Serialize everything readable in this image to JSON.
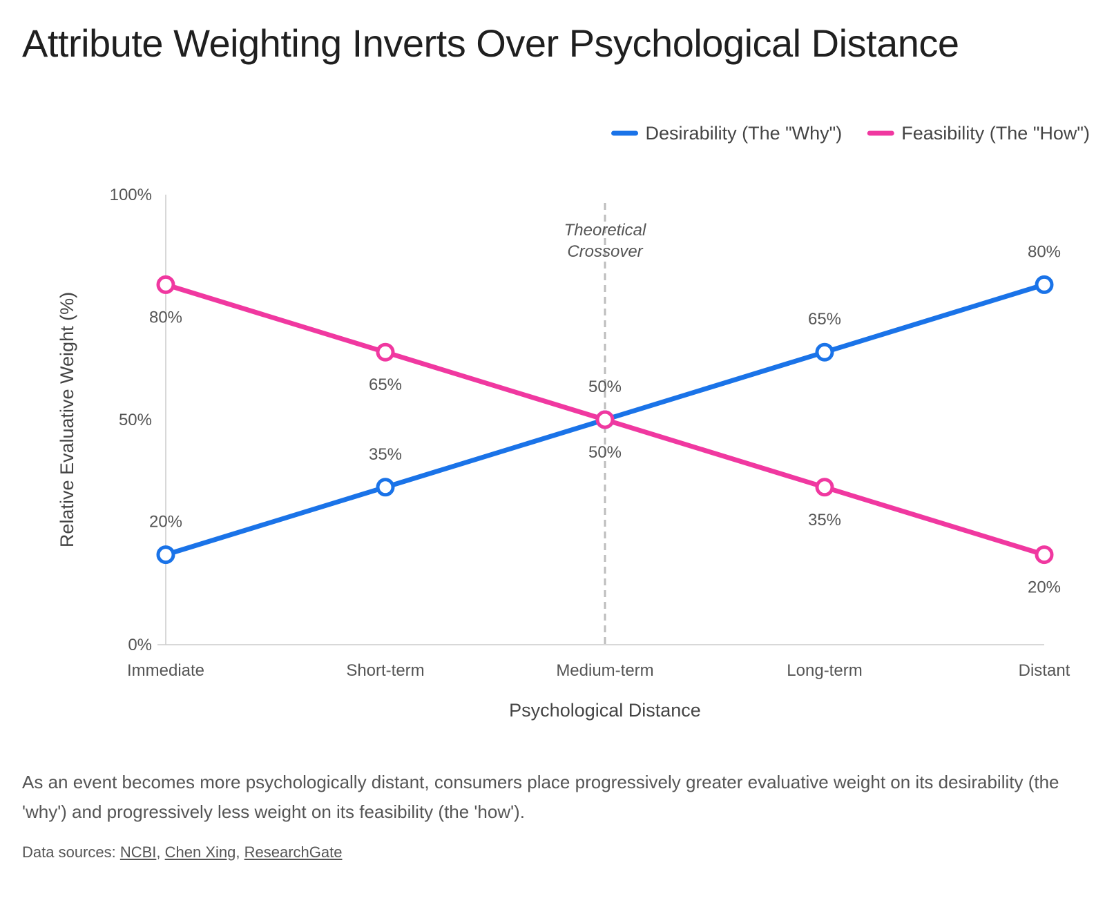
{
  "title": "Attribute Weighting Inverts Over Psychological Distance",
  "caption": "As an event becomes more psychologically distant, consumers place progressively greater evaluative weight on its desirability (the 'why') and progressively less weight on its feasibility (the 'how').",
  "sources": {
    "prefix": "Data sources: ",
    "links": [
      "NCBI",
      "Chen Xing",
      "ResearchGate"
    ],
    "separator": ", "
  },
  "chart_data": {
    "type": "line",
    "title": "Attribute Weighting Inverts Over Psychological Distance",
    "xlabel": "Psychological Distance",
    "ylabel": "Relative Evaluative Weight (%)",
    "categories": [
      "Immediate",
      "Short-term",
      "Medium-term",
      "Long-term",
      "Distant"
    ],
    "ylim": [
      0,
      100
    ],
    "yticks": [
      "0%",
      "50%",
      "100%"
    ],
    "grid": false,
    "legend_position": "top-right",
    "series": [
      {
        "name": "Desirability (The \"Why\")",
        "color": "#1a73e8",
        "values": [
          20,
          35,
          50,
          65,
          80
        ],
        "labels": [
          "20%",
          "35%",
          "50%",
          "65%",
          "80%"
        ],
        "label_position": "above"
      },
      {
        "name": "Feasibility (The \"How\")",
        "color": "#f038a0",
        "values": [
          80,
          65,
          50,
          35,
          20
        ],
        "labels": [
          "80%",
          "65%",
          "50%",
          "35%",
          "20%"
        ],
        "label_position": "below"
      }
    ],
    "annotation": {
      "text_lines": [
        "Theoretical",
        "Crossover"
      ],
      "category": "Medium-term",
      "line_style": "dashed",
      "line_color": "#bdbdbd"
    }
  }
}
